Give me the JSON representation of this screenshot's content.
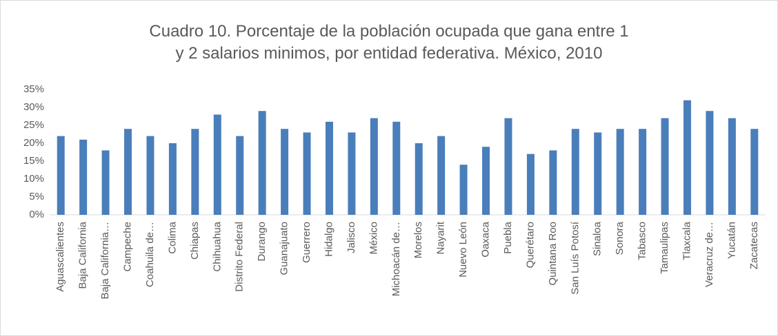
{
  "chart_data": {
    "type": "bar",
    "title": "Cuadro 10. Porcentaje de la población ocupada que gana entre 1 y 2 salarios minimos, por entidad federativa. México, 2010",
    "categories": [
      "Aguascalientes",
      "Baja California",
      "Baja California…",
      "Campeche",
      "Coahuila de…",
      "Colima",
      "Chiapas",
      "Chihuahua",
      "Distrito Federal",
      "Durango",
      "Guanajuato",
      "Guerrero",
      "Hidalgo",
      "Jalisco",
      "México",
      "Michoacán de…",
      "Morelos",
      "Nayarit",
      "Nuevo León",
      "Oaxaca",
      "Puebla",
      "Querétaro",
      "Quintana Roo",
      "San Luís Potosí",
      "Sinaloa",
      "Sonora",
      "Tabasco",
      "Tamaulipas",
      "Tlaxcala",
      "Veracruz de…",
      "Yucatán",
      "Zacatecas"
    ],
    "values": [
      22,
      21,
      18,
      24,
      22,
      20,
      24,
      28,
      22,
      29,
      24,
      23,
      26,
      23,
      27,
      26,
      20,
      22,
      14,
      19,
      27,
      17,
      18,
      24,
      23,
      24,
      24,
      27,
      32,
      29,
      27,
      24
    ],
    "color": "#4a7ebb",
    "ylim": [
      0,
      35
    ],
    "yticks": [
      {
        "value": 0,
        "label": "0%"
      },
      {
        "value": 5,
        "label": "5%"
      },
      {
        "value": 10,
        "label": "10%"
      },
      {
        "value": 15,
        "label": "15%"
      },
      {
        "value": 20,
        "label": "20%"
      },
      {
        "value": 25,
        "label": "25%"
      },
      {
        "value": 30,
        "label": "30%"
      },
      {
        "value": 35,
        "label": "35%"
      }
    ],
    "grid": false
  }
}
